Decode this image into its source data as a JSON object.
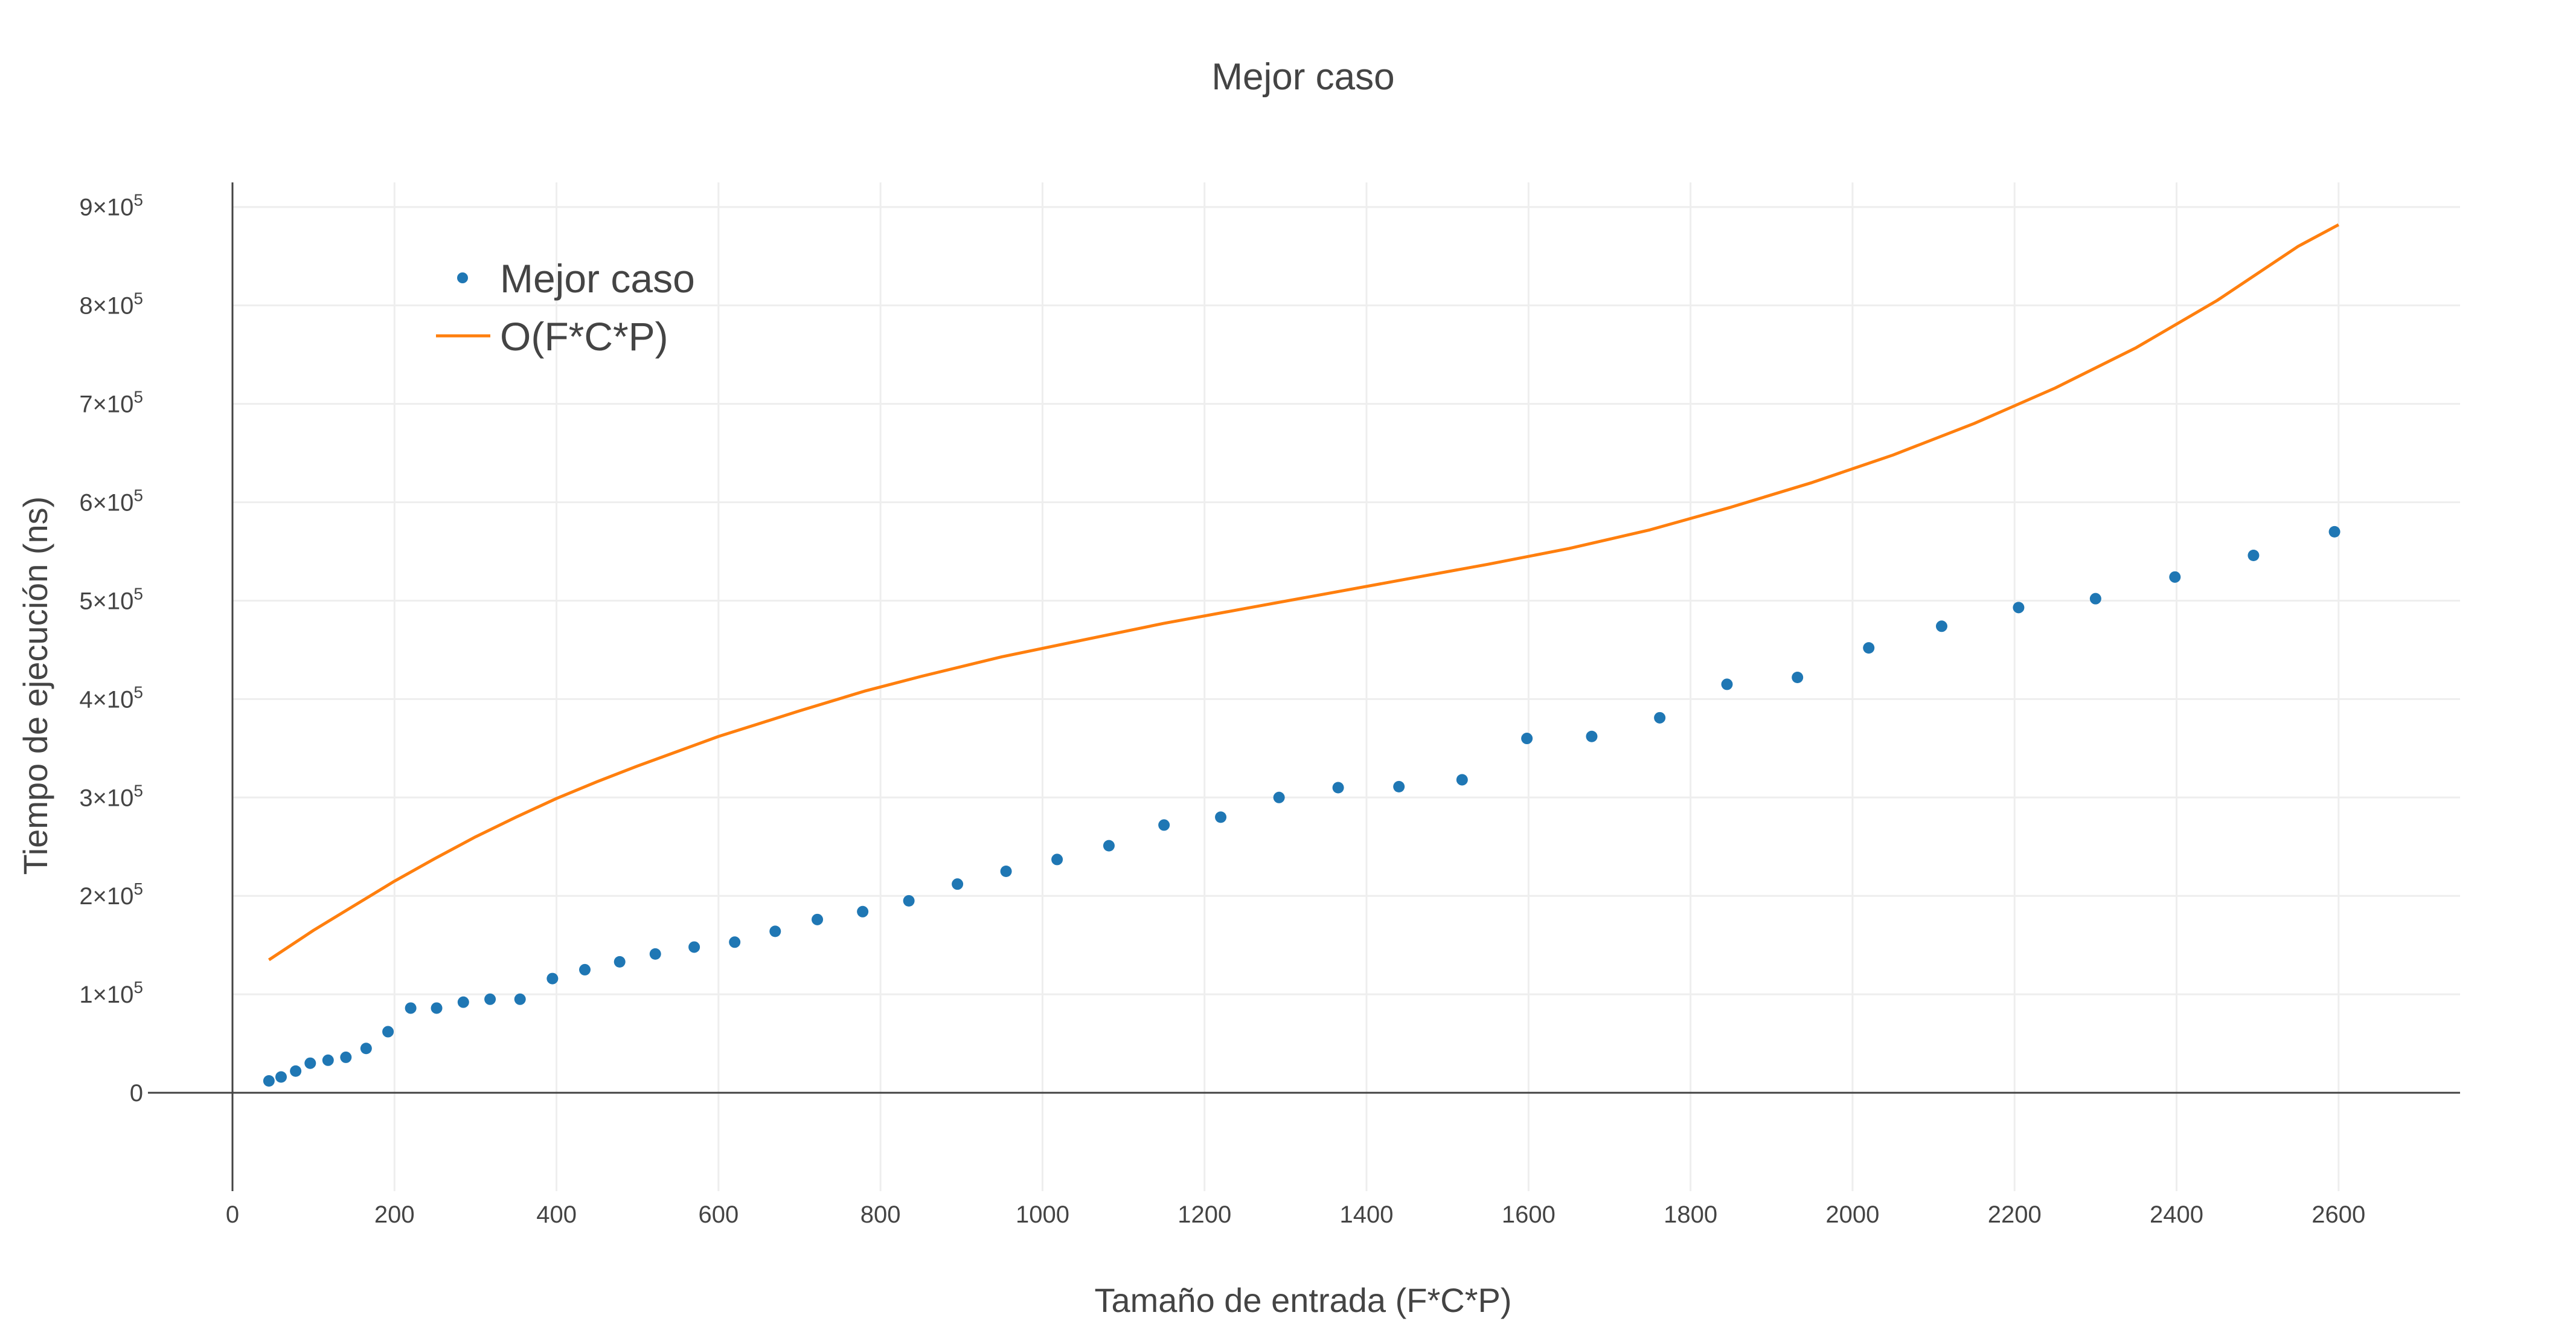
{
  "chart_data": {
    "type": "scatter",
    "title": "Mejor caso",
    "xlabel": "Tamaño de entrada (F*C*P)",
    "ylabel": "Tiempo de ejecución (ns)",
    "xlim": [
      0,
      2750
    ],
    "ylim": [
      -100000,
      925000
    ],
    "x_ticks": [
      0,
      200,
      400,
      600,
      800,
      1000,
      1200,
      1400,
      1600,
      1800,
      2000,
      2200,
      2400,
      2600
    ],
    "y_ticks": [
      {
        "value": 0,
        "mantissa": "0",
        "exponent": ""
      },
      {
        "value": 100000,
        "mantissa": "1×10",
        "exponent": "5"
      },
      {
        "value": 200000,
        "mantissa": "2×10",
        "exponent": "5"
      },
      {
        "value": 300000,
        "mantissa": "3×10",
        "exponent": "5"
      },
      {
        "value": 400000,
        "mantissa": "4×10",
        "exponent": "5"
      },
      {
        "value": 500000,
        "mantissa": "5×10",
        "exponent": "5"
      },
      {
        "value": 600000,
        "mantissa": "6×10",
        "exponent": "5"
      },
      {
        "value": 700000,
        "mantissa": "7×10",
        "exponent": "5"
      },
      {
        "value": 800000,
        "mantissa": "8×10",
        "exponent": "5"
      },
      {
        "value": 900000,
        "mantissa": "9×10",
        "exponent": "5"
      }
    ],
    "grid": true,
    "legend_position": "top-left",
    "series": [
      {
        "name": "Mejor caso",
        "mode": "markers",
        "color": "#1f77b4",
        "x": [
          45,
          60,
          78,
          96,
          118,
          140,
          165,
          192,
          220,
          252,
          285,
          318,
          355,
          395,
          435,
          478,
          522,
          570,
          620,
          670,
          722,
          778,
          835,
          895,
          955,
          1018,
          1082,
          1150,
          1220,
          1292,
          1365,
          1440,
          1518,
          1598,
          1678,
          1762,
          1845,
          1932,
          2020,
          2110,
          2205,
          2300,
          2398,
          2495,
          2595
        ],
        "y": [
          12000,
          16000,
          22000,
          30000,
          33000,
          36000,
          45000,
          62000,
          86000,
          86000,
          92000,
          95000,
          95000,
          116000,
          125000,
          133000,
          141000,
          148000,
          153000,
          164000,
          176000,
          184000,
          195000,
          212000,
          225000,
          237000,
          251000,
          272000,
          280000,
          300000,
          310000,
          311000,
          318000,
          360000,
          362000,
          381000,
          415000,
          422000,
          452000,
          474000,
          493000,
          502000,
          524000,
          546000,
          570000
        ]
      },
      {
        "name": "O(F*C*P)",
        "mode": "lines",
        "color": "#ff7f0e",
        "x": [
          45,
          100,
          150,
          200,
          250,
          300,
          350,
          400,
          450,
          500,
          550,
          600,
          650,
          700,
          780,
          850,
          950,
          1050,
          1150,
          1250,
          1350,
          1450,
          1550,
          1650,
          1750,
          1850,
          1950,
          2050,
          2150,
          2250,
          2350,
          2450,
          2550,
          2600
        ],
        "y": [
          135000,
          165000,
          190000,
          215000,
          238000,
          260000,
          280000,
          299000,
          316000,
          332000,
          347000,
          362000,
          375000,
          388000,
          408000,
          423000,
          443000,
          460000,
          477000,
          492000,
          507000,
          522000,
          537000,
          553000,
          572000,
          595000,
          620000,
          648000,
          680000,
          716000,
          757000,
          805000,
          860000,
          882000
        ]
      }
    ]
  }
}
